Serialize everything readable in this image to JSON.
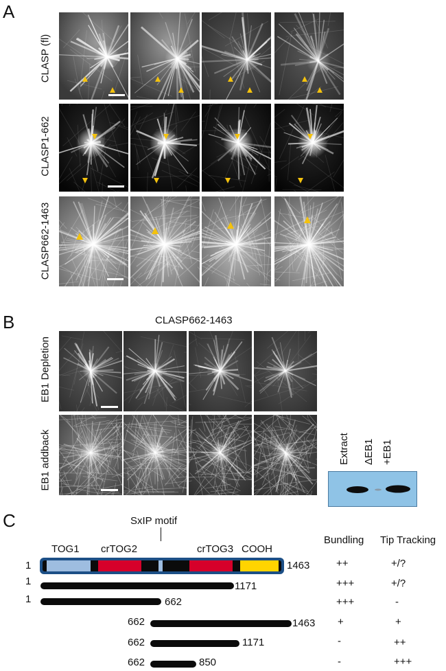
{
  "panel_a": {
    "letter": "A",
    "rows": [
      "CLASP (fl)",
      "CLASP1-662",
      "CLASP662-1463"
    ]
  },
  "panel_b": {
    "letter": "B",
    "title": "CLASP662-1463",
    "rows": [
      "EB1 Depletion",
      "EB1 addback"
    ],
    "western_lanes": [
      "Extract",
      "ΔEB1",
      "+EB1"
    ]
  },
  "panel_c": {
    "letter": "C",
    "motif_label": "SxIP motif",
    "domains": [
      "TOG1",
      "crTOG2",
      "crTOG3",
      "COOH"
    ],
    "domain_colors": {
      "TOG1": "#9ebde0",
      "crTOG2": "#d6002a",
      "crTOG3": "#d6002a",
      "COOH": "#ffd400",
      "frame": "#1c4f86",
      "linker": "#0b0b0b"
    },
    "col_headers": [
      "Bundling",
      "Tip Tracking"
    ],
    "constructs": [
      {
        "start": "1",
        "end": "1463",
        "bundling": "++",
        "tip": "+/?"
      },
      {
        "start": "1",
        "end": "1171",
        "bundling": "+++",
        "tip": "+/?"
      },
      {
        "start": "1",
        "end": "662",
        "bundling": "+++",
        "tip": "-"
      },
      {
        "start": "662",
        "end": "1463",
        "bundling": "+",
        "tip": "+"
      },
      {
        "start": "662",
        "end": "1171",
        "bundling": "-",
        "tip": "++"
      },
      {
        "start": "662",
        "end": "850",
        "bundling": "-",
        "tip": "+++"
      }
    ]
  }
}
